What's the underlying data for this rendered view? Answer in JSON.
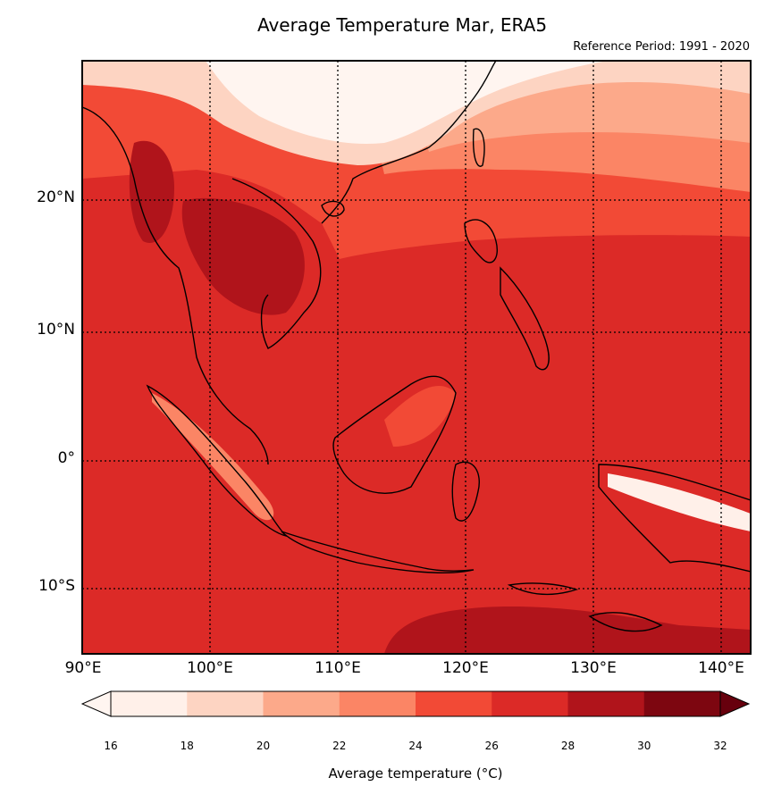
{
  "title": "Average Temperature Mar, ERA5",
  "subtitle": "Reference Period: 1991 - 2020",
  "map": {
    "region": "Southeast Asia",
    "lon_range": [
      90,
      142
    ],
    "lat_range": [
      -15,
      31
    ],
    "gridlines": "dotted",
    "coastlines": true,
    "country_borders": true
  },
  "lat_labels": [
    "20°N",
    "10°N",
    "0°",
    "10°S"
  ],
  "lon_labels": [
    "90°E",
    "100°E",
    "110°E",
    "120°E",
    "130°E",
    "140°E"
  ],
  "colorbar": {
    "title": "Average temperature (°C)",
    "ticks": [
      "16",
      "18",
      "20",
      "22",
      "24",
      "26",
      "28",
      "30",
      "32"
    ],
    "colors": [
      "#fff0e9",
      "#fdd4c2",
      "#fca98a",
      "#fb8565",
      "#f24a36",
      "#dc2a27",
      "#b0141b",
      "#7d0610"
    ],
    "extend": "both",
    "under_color": "#fff5f0",
    "over_color": "#67000d"
  }
}
